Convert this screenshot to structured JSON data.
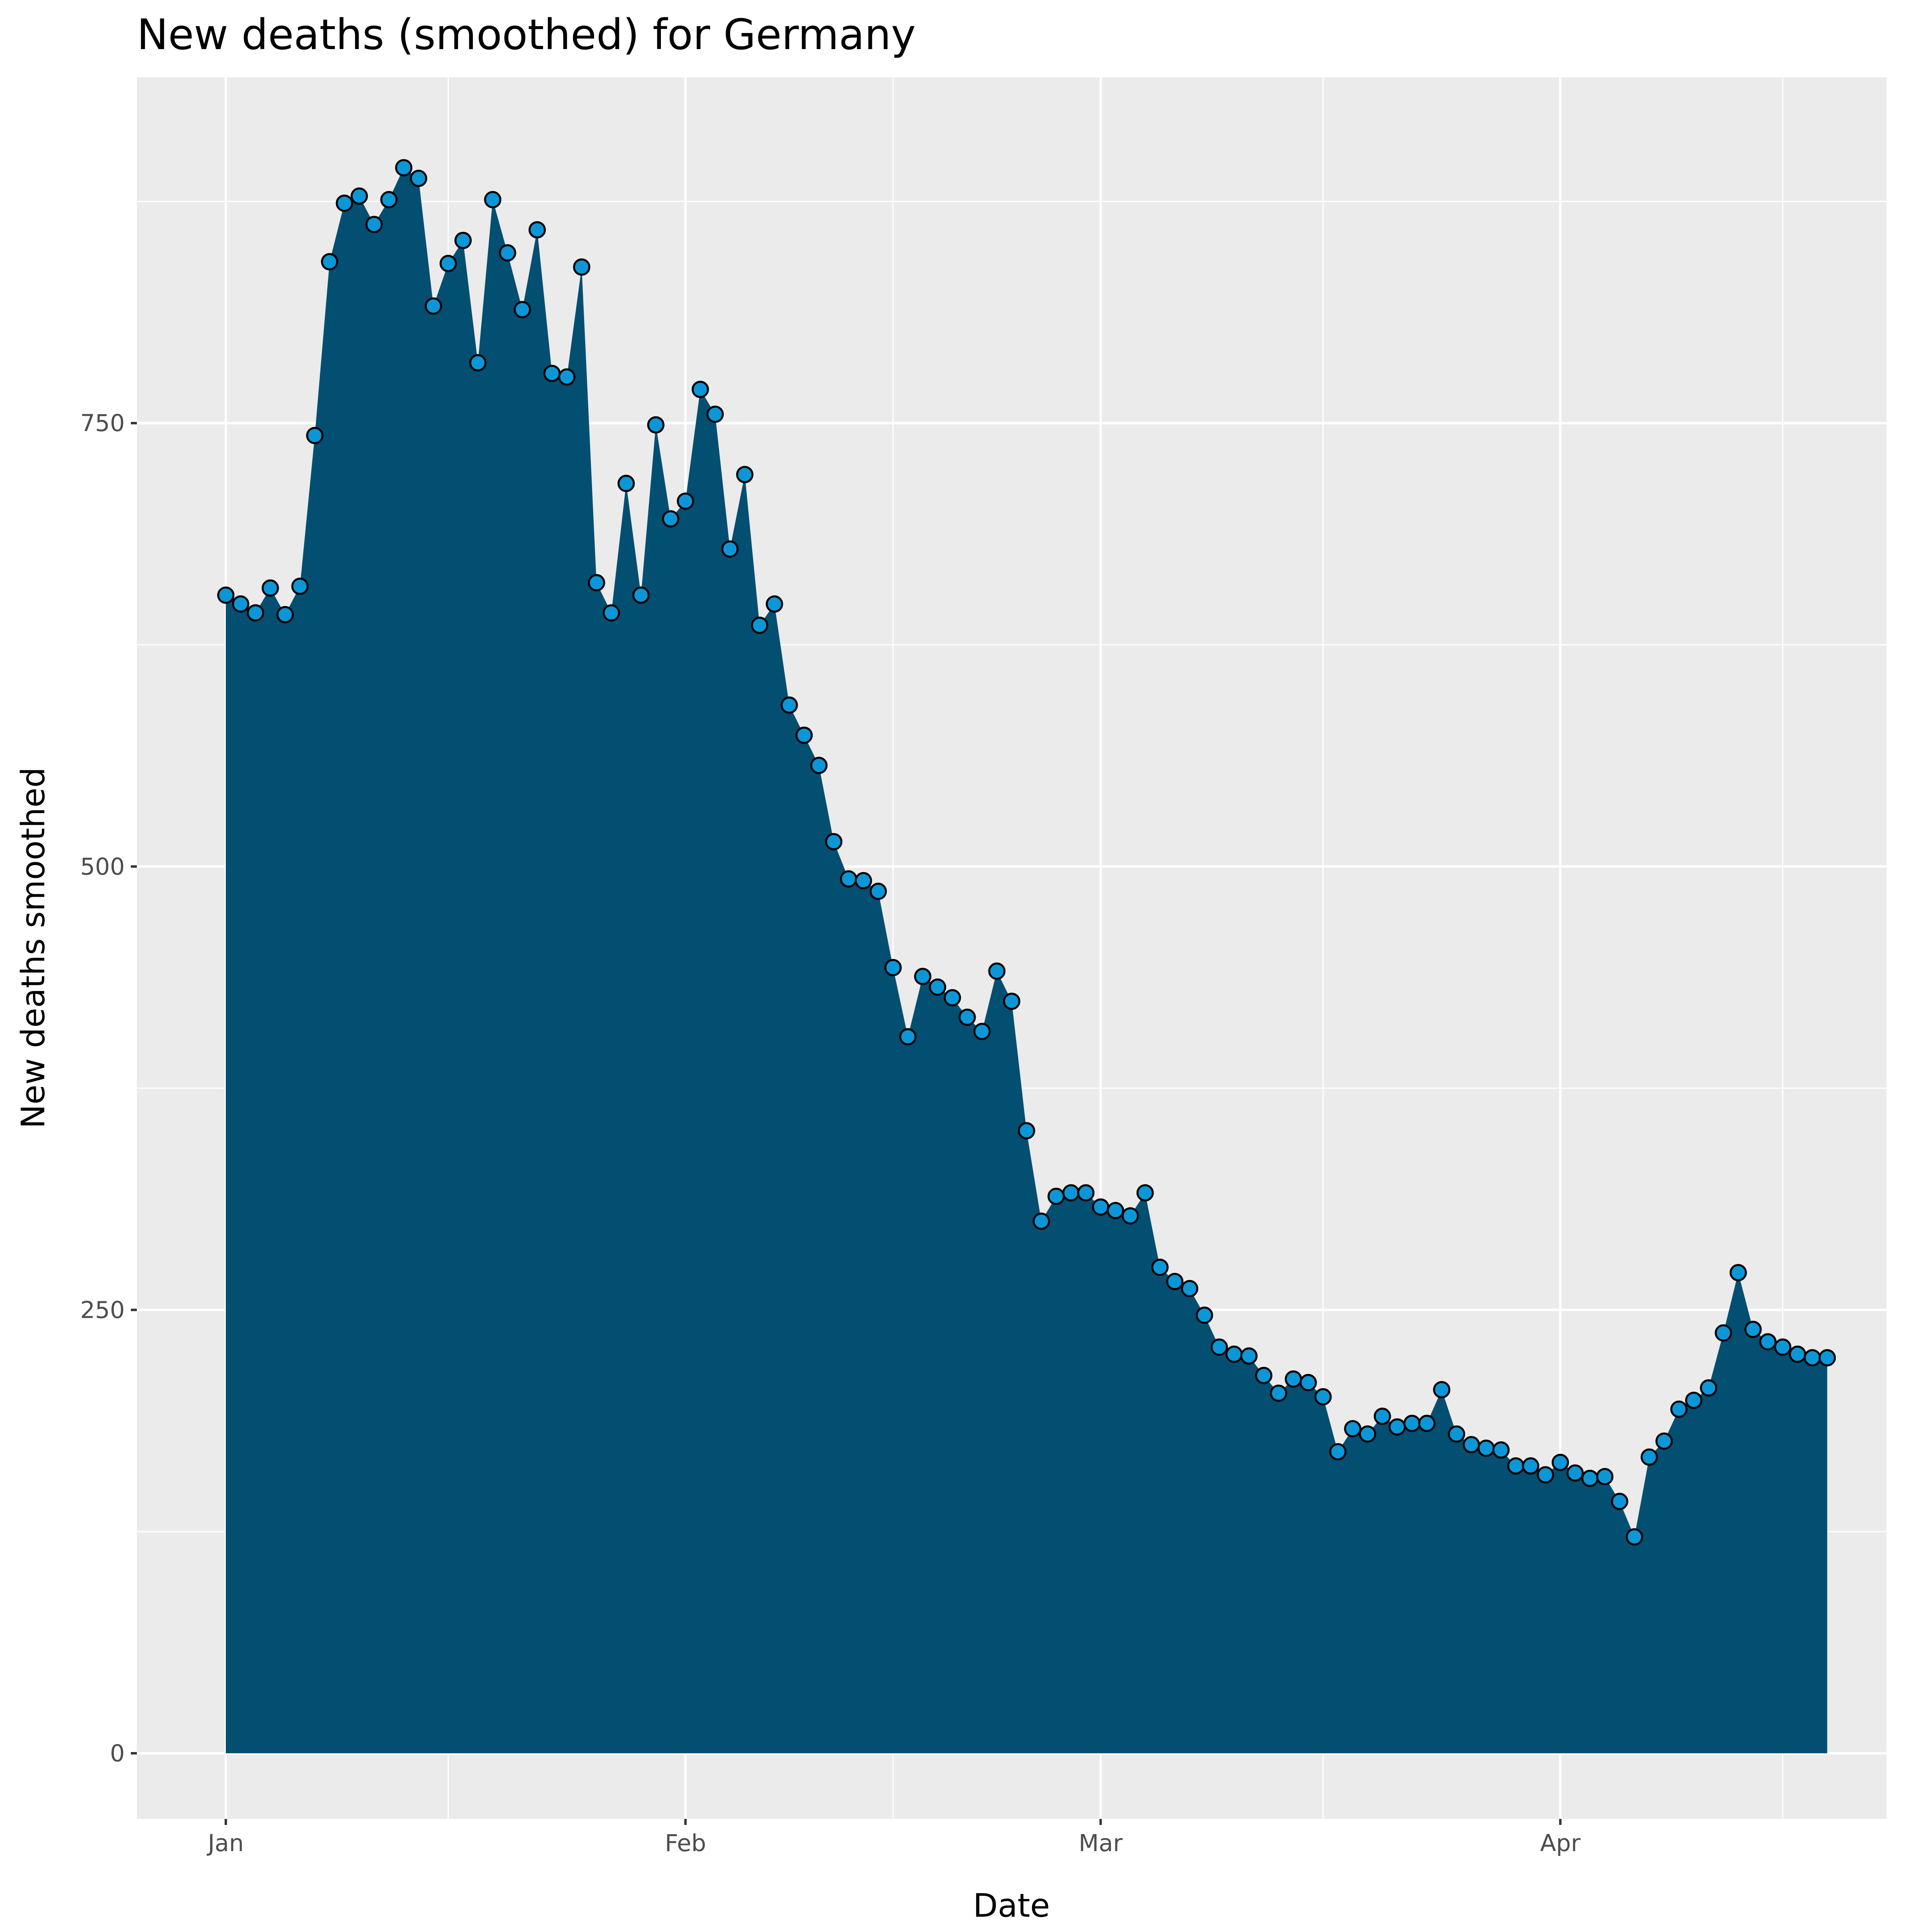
{
  "chart_data": {
    "type": "area",
    "title": "New deaths (smoothed) for Germany",
    "xlabel": "Date",
    "ylabel": "New deaths smoothed",
    "x_start": "2021-01-01",
    "x_end": "2021-04-19",
    "xlim": [
      "2020-12-26",
      "2021-04-23"
    ],
    "ylim": [
      -37,
      945
    ],
    "x_ticks": [
      {
        "date": "2021-01-01",
        "label": "Jan"
      },
      {
        "date": "2021-02-01",
        "label": "Feb"
      },
      {
        "date": "2021-03-01",
        "label": "Mar"
      },
      {
        "date": "2021-04-01",
        "label": "Apr"
      }
    ],
    "x_minor_ticks": [
      "2021-01-16",
      "2021-02-15",
      "2021-03-16",
      "2021-04-16"
    ],
    "y_ticks": [
      0,
      250,
      500,
      750
    ],
    "y_minor_ticks": [
      125,
      375,
      625,
      875
    ],
    "grid": true,
    "legend": "none",
    "series": [
      {
        "values": [
          653,
          648,
          643,
          657,
          642,
          658,
          743,
          841,
          874,
          878,
          862,
          876,
          894,
          888,
          816,
          840,
          853,
          784,
          876,
          846,
          814,
          859,
          778,
          776,
          838,
          660,
          643,
          716,
          653,
          749,
          696,
          706,
          769,
          755,
          679,
          721,
          636,
          648,
          591,
          574,
          557,
          514,
          493,
          492,
          486,
          443,
          404,
          438,
          432,
          426,
          415,
          407,
          441,
          424,
          351,
          300,
          314,
          316,
          316,
          308,
          306,
          303,
          316,
          274,
          266,
          262,
          247,
          229,
          225,
          224,
          213,
          203,
          211,
          209,
          201,
          170,
          183,
          180,
          190,
          184,
          186,
          186,
          205,
          180,
          174,
          172,
          171,
          162,
          162,
          157,
          164,
          158,
          155,
          156,
          142,
          122,
          167,
          176,
          194,
          199,
          206,
          237,
          271,
          239,
          232,
          229,
          225,
          223,
          223
        ]
      }
    ],
    "colors": {
      "area_fill": "#034f71",
      "point_fill": "#0b97d7",
      "point_stroke": "#000000",
      "panel_background": "#ebebeb",
      "grid": "#ffffff"
    }
  }
}
